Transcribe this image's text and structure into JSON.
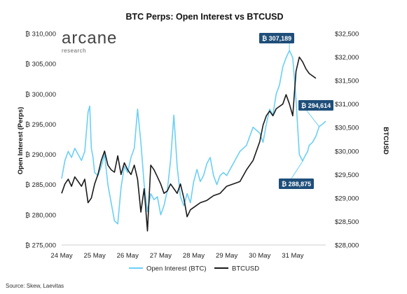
{
  "logo": {
    "main": "arcane",
    "sub": "research"
  },
  "source": "Source: Skew, Laevitas",
  "chart_data": {
    "type": "line",
    "title": "BTC Perps: Open Interest vs BTCUSD",
    "xlabel": "",
    "ylabel_left": "Open Interest (Perps)",
    "ylabel_right": "BTCUSD",
    "x_ticks": [
      "24 May",
      "25 May",
      "26 May",
      "27 May",
      "28 May",
      "29 May",
      "30 May",
      "31 May"
    ],
    "y_left_ticks": [
      "₿ 275,000",
      "₿ 280,000",
      "₿ 285,000",
      "₿ 290,000",
      "₿ 295,000",
      "₿ 300,000",
      "₿ 305,000",
      "₿ 310,000"
    ],
    "y_right_ticks": [
      "$28,000",
      "$28,500",
      "$29,000",
      "$29,500",
      "$30,000",
      "$30,500",
      "$31,000",
      "$31,500",
      "$32,000",
      "$32,500"
    ],
    "ylim_left": [
      275000,
      310000
    ],
    "ylim_right": [
      28000,
      32500
    ],
    "xlim": [
      0,
      8
    ],
    "legend_position": "bottom",
    "grid": false,
    "colors": {
      "open_interest": "#6ccff6",
      "btcusd": "#1a1a1a",
      "callout_bg": "#1f4e79"
    },
    "series": [
      {
        "name": "Open Interest (BTC)",
        "axis": "left",
        "x": [
          0,
          0.1,
          0.2,
          0.3,
          0.4,
          0.5,
          0.6,
          0.7,
          0.8,
          0.85,
          0.9,
          0.95,
          1.0,
          1.1,
          1.2,
          1.3,
          1.4,
          1.5,
          1.6,
          1.7,
          1.8,
          1.9,
          2.0,
          2.1,
          2.2,
          2.3,
          2.4,
          2.5,
          2.6,
          2.7,
          2.8,
          2.9,
          3.0,
          3.1,
          3.2,
          3.3,
          3.4,
          3.5,
          3.6,
          3.7,
          3.8,
          3.9,
          4.0,
          4.1,
          4.2,
          4.3,
          4.4,
          4.5,
          4.6,
          4.7,
          4.8,
          4.9,
          5.0,
          5.2,
          5.4,
          5.6,
          5.8,
          6.0,
          6.1,
          6.2,
          6.3,
          6.4,
          6.5,
          6.6,
          6.7,
          6.8,
          6.9,
          7.0,
          7.1,
          7.2,
          7.3,
          7.35,
          7.4,
          7.45,
          7.5,
          7.6,
          7.7,
          7.8,
          7.9,
          8.0
        ],
        "values": [
          286000,
          289000,
          290500,
          289500,
          291000,
          290000,
          289000,
          290500,
          297000,
          298000,
          291000,
          289500,
          287000,
          286500,
          288000,
          290000,
          285000,
          282000,
          279000,
          278500,
          284500,
          288000,
          287000,
          289500,
          291000,
          297500,
          292000,
          285000,
          280500,
          283500,
          282500,
          283000,
          280000,
          281500,
          284000,
          289000,
          296500,
          288000,
          283000,
          281500,
          283500,
          282000,
          285500,
          287500,
          285500,
          286500,
          288500,
          289500,
          286500,
          285000,
          286500,
          287000,
          286500,
          288500,
          290500,
          291500,
          294500,
          293500,
          292000,
          295000,
          297500,
          296500,
          300000,
          301500,
          304500,
          306000,
          307200,
          306000,
          299000,
          290000,
          288900,
          289500,
          290000,
          290500,
          291500,
          292000,
          293000,
          294600,
          295000,
          295500
        ]
      },
      {
        "name": "BTCUSD",
        "axis": "right",
        "x": [
          0,
          0.1,
          0.2,
          0.3,
          0.4,
          0.5,
          0.6,
          0.7,
          0.8,
          0.9,
          1.0,
          1.1,
          1.2,
          1.3,
          1.4,
          1.5,
          1.6,
          1.7,
          1.8,
          1.9,
          2.0,
          2.1,
          2.2,
          2.3,
          2.4,
          2.5,
          2.6,
          2.7,
          2.8,
          2.9,
          3.0,
          3.1,
          3.2,
          3.3,
          3.4,
          3.5,
          3.6,
          3.7,
          3.8,
          3.9,
          4.0,
          4.2,
          4.4,
          4.6,
          4.8,
          5.0,
          5.2,
          5.4,
          5.6,
          5.8,
          6.0,
          6.1,
          6.2,
          6.3,
          6.4,
          6.5,
          6.6,
          6.7,
          6.8,
          6.9,
          7.0,
          7.1,
          7.2,
          7.3,
          7.4,
          7.5,
          7.6,
          7.7
        ],
        "values": [
          29100,
          29300,
          29400,
          29250,
          29450,
          29350,
          29250,
          29400,
          28900,
          29000,
          29300,
          29500,
          29800,
          30000,
          29700,
          29600,
          29550,
          29900,
          29500,
          29750,
          29600,
          29500,
          29700,
          29400,
          28700,
          29200,
          28300,
          29700,
          29600,
          29450,
          29300,
          29100,
          29150,
          29300,
          29200,
          29100,
          29300,
          29000,
          28600,
          28750,
          28800,
          28900,
          28950,
          29050,
          29100,
          29250,
          29300,
          29350,
          29600,
          29800,
          30200,
          30550,
          30750,
          30850,
          30750,
          30900,
          30950,
          31000,
          31200,
          31000,
          30750,
          31700,
          32000,
          31900,
          31750,
          31650,
          31600,
          31550
        ]
      }
    ],
    "annotations": [
      {
        "label": "₿ 307,189",
        "x": 6.9,
        "value": 307189
      },
      {
        "label": "₿ 294,614",
        "x": 7.8,
        "value": 294614
      },
      {
        "label": "₿ 288,875",
        "x": 7.3,
        "value": 288875
      }
    ]
  }
}
